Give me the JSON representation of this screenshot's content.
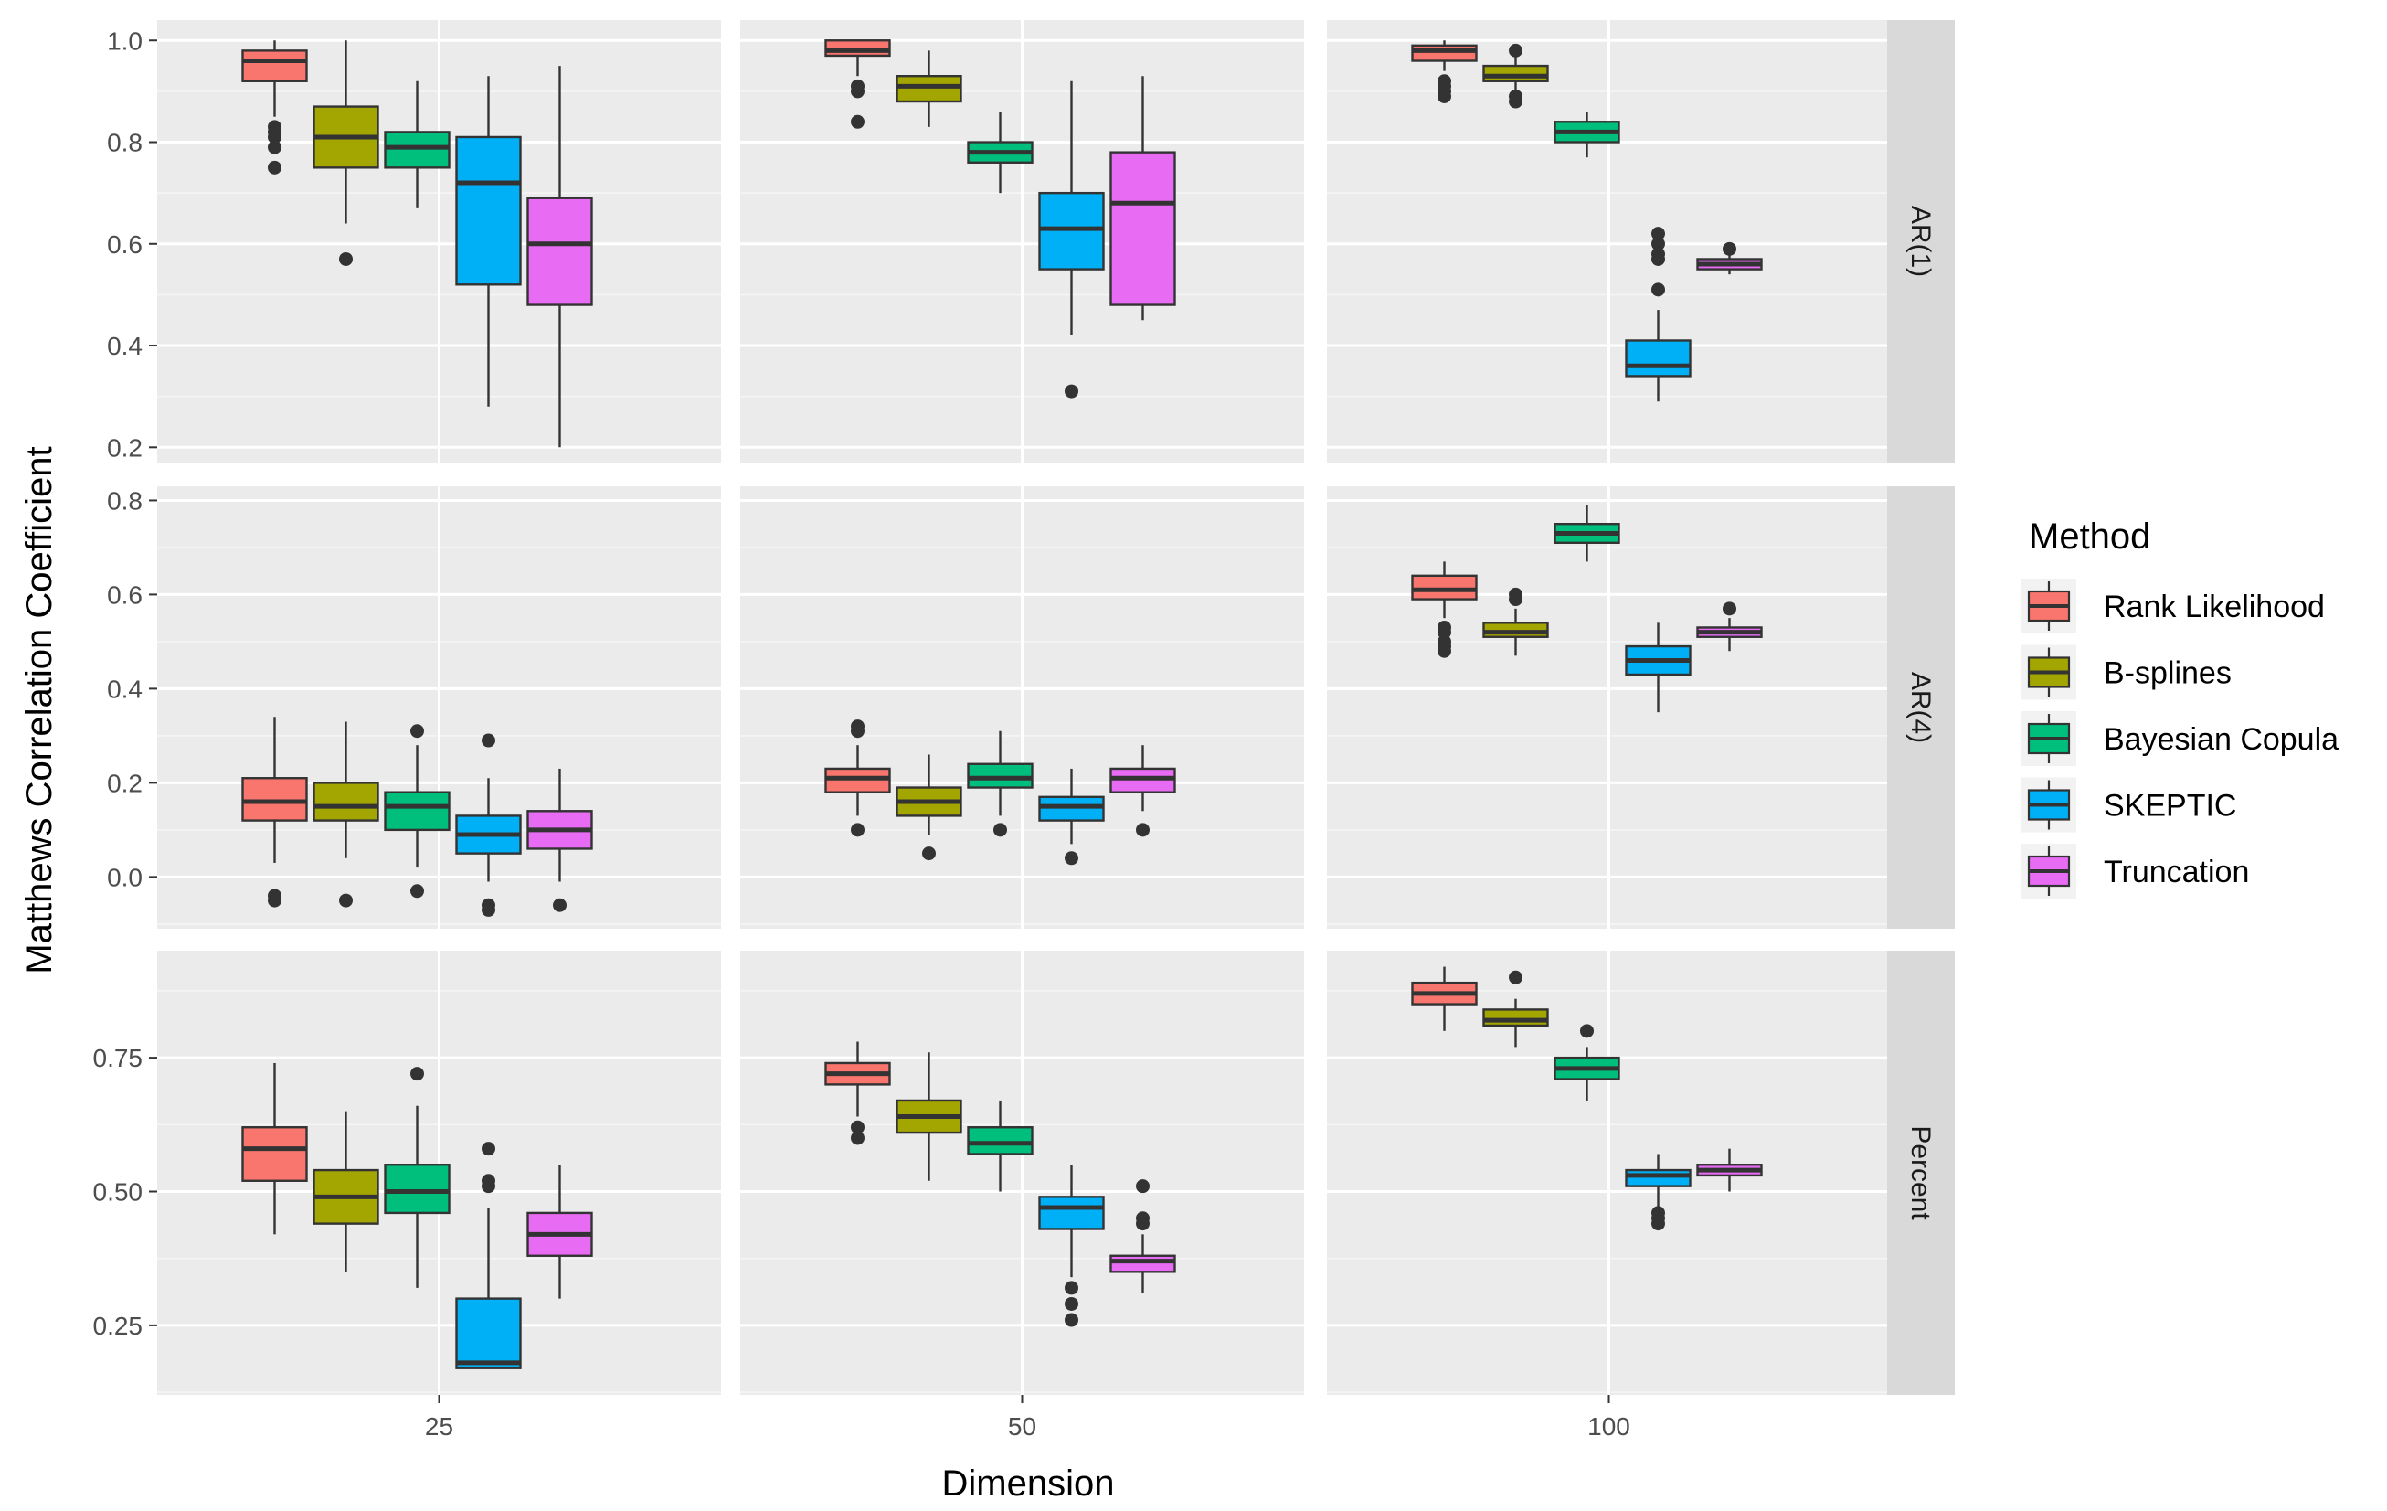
{
  "chart_data": {
    "type": "boxplot",
    "facets": {
      "columns": [
        "25",
        "50",
        "100"
      ],
      "rows": [
        "AR(1)",
        "AR(4)",
        "Percent"
      ]
    },
    "xlabel": "Dimension",
    "ylabel": "Matthews Correlation Coefficient",
    "legend": {
      "title": "Method",
      "position": "right",
      "entries": [
        {
          "name": "Rank Likelihood",
          "color": "#F8766D"
        },
        {
          "name": "B-splines",
          "color": "#A3A500"
        },
        {
          "name": "Bayesian Copula",
          "color": "#00BF7D"
        },
        {
          "name": "SKEPTIC",
          "color": "#00B0F6"
        },
        {
          "name": "Truncation",
          "color": "#E76BF3"
        }
      ]
    },
    "grid": true,
    "panels": [
      {
        "row": "AR(1)",
        "ylim": [
          0.17,
          1.04
        ],
        "yticks": [
          0.2,
          0.4,
          0.6,
          0.8,
          1.0
        ],
        "ytick_labels": [
          "0.2",
          "0.4",
          "0.6",
          "0.8",
          "1.0"
        ],
        "columns": [
          {
            "dimension": "25",
            "boxes": [
              {
                "method": "Rank Likelihood",
                "whislo": 0.85,
                "q1": 0.92,
                "median": 0.96,
                "q3": 0.98,
                "whishi": 1.0,
                "outliers": [
                  0.83,
                  0.82,
                  0.81,
                  0.79,
                  0.75
                ]
              },
              {
                "method": "B-splines",
                "whislo": 0.64,
                "q1": 0.75,
                "median": 0.81,
                "q3": 0.87,
                "whishi": 1.0,
                "outliers": [
                  0.57
                ]
              },
              {
                "method": "Bayesian Copula",
                "whislo": 0.67,
                "q1": 0.75,
                "median": 0.79,
                "q3": 0.82,
                "whishi": 0.92,
                "outliers": []
              },
              {
                "method": "SKEPTIC",
                "whislo": 0.28,
                "q1": 0.52,
                "median": 0.72,
                "q3": 0.81,
                "whishi": 0.93,
                "outliers": []
              },
              {
                "method": "Truncation",
                "whislo": 0.2,
                "q1": 0.48,
                "median": 0.6,
                "q3": 0.69,
                "whishi": 0.95,
                "outliers": []
              }
            ]
          },
          {
            "dimension": "50",
            "boxes": [
              {
                "method": "Rank Likelihood",
                "whislo": 0.93,
                "q1": 0.97,
                "median": 0.98,
                "q3": 1.0,
                "whishi": 1.0,
                "outliers": [
                  0.91,
                  0.9,
                  0.84
                ]
              },
              {
                "method": "B-splines",
                "whislo": 0.83,
                "q1": 0.88,
                "median": 0.91,
                "q3": 0.93,
                "whishi": 0.98,
                "outliers": []
              },
              {
                "method": "Bayesian Copula",
                "whislo": 0.7,
                "q1": 0.76,
                "median": 0.78,
                "q3": 0.8,
                "whishi": 0.86,
                "outliers": []
              },
              {
                "method": "SKEPTIC",
                "whislo": 0.42,
                "q1": 0.55,
                "median": 0.63,
                "q3": 0.7,
                "whishi": 0.92,
                "outliers": [
                  0.31
                ]
              },
              {
                "method": "Truncation",
                "whislo": 0.45,
                "q1": 0.48,
                "median": 0.68,
                "q3": 0.78,
                "whishi": 0.93,
                "outliers": []
              }
            ]
          },
          {
            "dimension": "100",
            "boxes": [
              {
                "method": "Rank Likelihood",
                "whislo": 0.94,
                "q1": 0.96,
                "median": 0.98,
                "q3": 0.99,
                "whishi": 1.0,
                "outliers": [
                  0.92,
                  0.91,
                  0.9,
                  0.89
                ]
              },
              {
                "method": "B-splines",
                "whislo": 0.9,
                "q1": 0.92,
                "median": 0.93,
                "q3": 0.95,
                "whishi": 0.97,
                "outliers": [
                  0.98,
                  0.89,
                  0.88
                ]
              },
              {
                "method": "Bayesian Copula",
                "whislo": 0.77,
                "q1": 0.8,
                "median": 0.82,
                "q3": 0.84,
                "whishi": 0.86,
                "outliers": []
              },
              {
                "method": "SKEPTIC",
                "whislo": 0.29,
                "q1": 0.34,
                "median": 0.36,
                "q3": 0.41,
                "whishi": 0.47,
                "outliers": [
                  0.62,
                  0.6,
                  0.58,
                  0.57,
                  0.51
                ]
              },
              {
                "method": "Truncation",
                "whislo": 0.54,
                "q1": 0.55,
                "median": 0.56,
                "q3": 0.57,
                "whishi": 0.58,
                "outliers": [
                  0.59
                ]
              }
            ]
          }
        ]
      },
      {
        "row": "AR(4)",
        "ylim": [
          -0.11,
          0.83
        ],
        "yticks": [
          0.0,
          0.2,
          0.4,
          0.6,
          0.8
        ],
        "ytick_labels": [
          "0.0",
          "0.2",
          "0.4",
          "0.6",
          "0.8"
        ],
        "columns": [
          {
            "dimension": "25",
            "boxes": [
              {
                "method": "Rank Likelihood",
                "whislo": 0.03,
                "q1": 0.12,
                "median": 0.16,
                "q3": 0.21,
                "whishi": 0.34,
                "outliers": [
                  -0.04,
                  -0.05
                ]
              },
              {
                "method": "B-splines",
                "whislo": 0.04,
                "q1": 0.12,
                "median": 0.15,
                "q3": 0.2,
                "whishi": 0.33,
                "outliers": [
                  -0.05
                ]
              },
              {
                "method": "Bayesian Copula",
                "whislo": 0.02,
                "q1": 0.1,
                "median": 0.15,
                "q3": 0.18,
                "whishi": 0.28,
                "outliers": [
                  0.31,
                  -0.03
                ]
              },
              {
                "method": "SKEPTIC",
                "whislo": -0.01,
                "q1": 0.05,
                "median": 0.09,
                "q3": 0.13,
                "whishi": 0.21,
                "outliers": [
                  0.29,
                  -0.06,
                  -0.07
                ]
              },
              {
                "method": "Truncation",
                "whislo": -0.01,
                "q1": 0.06,
                "median": 0.1,
                "q3": 0.14,
                "whishi": 0.23,
                "outliers": [
                  -0.06
                ]
              }
            ]
          },
          {
            "dimension": "50",
            "boxes": [
              {
                "method": "Rank Likelihood",
                "whislo": 0.13,
                "q1": 0.18,
                "median": 0.21,
                "q3": 0.23,
                "whishi": 0.28,
                "outliers": [
                  0.32,
                  0.31,
                  0.1
                ]
              },
              {
                "method": "B-splines",
                "whislo": 0.09,
                "q1": 0.13,
                "median": 0.16,
                "q3": 0.19,
                "whishi": 0.26,
                "outliers": [
                  0.05
                ]
              },
              {
                "method": "Bayesian Copula",
                "whislo": 0.13,
                "q1": 0.19,
                "median": 0.21,
                "q3": 0.24,
                "whishi": 0.31,
                "outliers": [
                  0.1
                ]
              },
              {
                "method": "SKEPTIC",
                "whislo": 0.07,
                "q1": 0.12,
                "median": 0.15,
                "q3": 0.17,
                "whishi": 0.23,
                "outliers": [
                  0.04
                ]
              },
              {
                "method": "Truncation",
                "whislo": 0.14,
                "q1": 0.18,
                "median": 0.21,
                "q3": 0.23,
                "whishi": 0.28,
                "outliers": [
                  0.1
                ]
              }
            ]
          },
          {
            "dimension": "100",
            "boxes": [
              {
                "method": "Rank Likelihood",
                "whislo": 0.55,
                "q1": 0.59,
                "median": 0.61,
                "q3": 0.64,
                "whishi": 0.67,
                "outliers": [
                  0.53,
                  0.52,
                  0.5,
                  0.49,
                  0.48
                ]
              },
              {
                "method": "B-splines",
                "whislo": 0.47,
                "q1": 0.51,
                "median": 0.52,
                "q3": 0.54,
                "whishi": 0.57,
                "outliers": [
                  0.6,
                  0.59
                ]
              },
              {
                "method": "Bayesian Copula",
                "whislo": 0.67,
                "q1": 0.71,
                "median": 0.73,
                "q3": 0.75,
                "whishi": 0.79,
                "outliers": []
              },
              {
                "method": "SKEPTIC",
                "whislo": 0.35,
                "q1": 0.43,
                "median": 0.46,
                "q3": 0.49,
                "whishi": 0.54,
                "outliers": []
              },
              {
                "method": "Truncation",
                "whislo": 0.48,
                "q1": 0.51,
                "median": 0.52,
                "q3": 0.53,
                "whishi": 0.55,
                "outliers": [
                  0.57
                ]
              }
            ]
          }
        ]
      },
      {
        "row": "Percent",
        "ylim": [
          0.12,
          0.95
        ],
        "yticks": [
          0.25,
          0.5,
          0.75
        ],
        "ytick_labels": [
          "0.25",
          "0.50",
          "0.75"
        ],
        "columns": [
          {
            "dimension": "25",
            "boxes": [
              {
                "method": "Rank Likelihood",
                "whislo": 0.42,
                "q1": 0.52,
                "median": 0.58,
                "q3": 0.62,
                "whishi": 0.74,
                "outliers": []
              },
              {
                "method": "B-splines",
                "whislo": 0.35,
                "q1": 0.44,
                "median": 0.49,
                "q3": 0.54,
                "whishi": 0.65,
                "outliers": []
              },
              {
                "method": "Bayesian Copula",
                "whislo": 0.32,
                "q1": 0.46,
                "median": 0.5,
                "q3": 0.55,
                "whishi": 0.66,
                "outliers": [
                  0.72
                ]
              },
              {
                "method": "SKEPTIC",
                "whislo": 0.17,
                "q1": 0.17,
                "median": 0.18,
                "q3": 0.3,
                "whishi": 0.47,
                "outliers": [
                  0.58,
                  0.52,
                  0.51
                ]
              },
              {
                "method": "Truncation",
                "whislo": 0.3,
                "q1": 0.38,
                "median": 0.42,
                "q3": 0.46,
                "whishi": 0.55,
                "outliers": []
              }
            ]
          },
          {
            "dimension": "50",
            "boxes": [
              {
                "method": "Rank Likelihood",
                "whislo": 0.64,
                "q1": 0.7,
                "median": 0.72,
                "q3": 0.74,
                "whishi": 0.78,
                "outliers": [
                  0.62,
                  0.6
                ]
              },
              {
                "method": "B-splines",
                "whislo": 0.52,
                "q1": 0.61,
                "median": 0.64,
                "q3": 0.67,
                "whishi": 0.76,
                "outliers": []
              },
              {
                "method": "Bayesian Copula",
                "whislo": 0.5,
                "q1": 0.57,
                "median": 0.59,
                "q3": 0.62,
                "whishi": 0.67,
                "outliers": []
              },
              {
                "method": "SKEPTIC",
                "whislo": 0.34,
                "q1": 0.43,
                "median": 0.47,
                "q3": 0.49,
                "whishi": 0.55,
                "outliers": [
                  0.32,
                  0.29,
                  0.26
                ]
              },
              {
                "method": "Truncation",
                "whislo": 0.31,
                "q1": 0.35,
                "median": 0.37,
                "q3": 0.38,
                "whishi": 0.42,
                "outliers": [
                  0.51,
                  0.45,
                  0.44
                ]
              }
            ]
          },
          {
            "dimension": "100",
            "boxes": [
              {
                "method": "Rank Likelihood",
                "whislo": 0.8,
                "q1": 0.85,
                "median": 0.87,
                "q3": 0.89,
                "whishi": 0.92,
                "outliers": []
              },
              {
                "method": "B-splines",
                "whislo": 0.77,
                "q1": 0.81,
                "median": 0.82,
                "q3": 0.84,
                "whishi": 0.86,
                "outliers": [
                  0.9
                ]
              },
              {
                "method": "Bayesian Copula",
                "whislo": 0.67,
                "q1": 0.71,
                "median": 0.73,
                "q3": 0.75,
                "whishi": 0.77,
                "outliers": [
                  0.8
                ]
              },
              {
                "method": "SKEPTIC",
                "whislo": 0.47,
                "q1": 0.51,
                "median": 0.53,
                "q3": 0.54,
                "whishi": 0.57,
                "outliers": [
                  0.46,
                  0.45,
                  0.44
                ]
              },
              {
                "method": "Truncation",
                "whislo": 0.5,
                "q1": 0.53,
                "median": 0.54,
                "q3": 0.55,
                "whishi": 0.58,
                "outliers": []
              }
            ]
          }
        ]
      }
    ]
  }
}
